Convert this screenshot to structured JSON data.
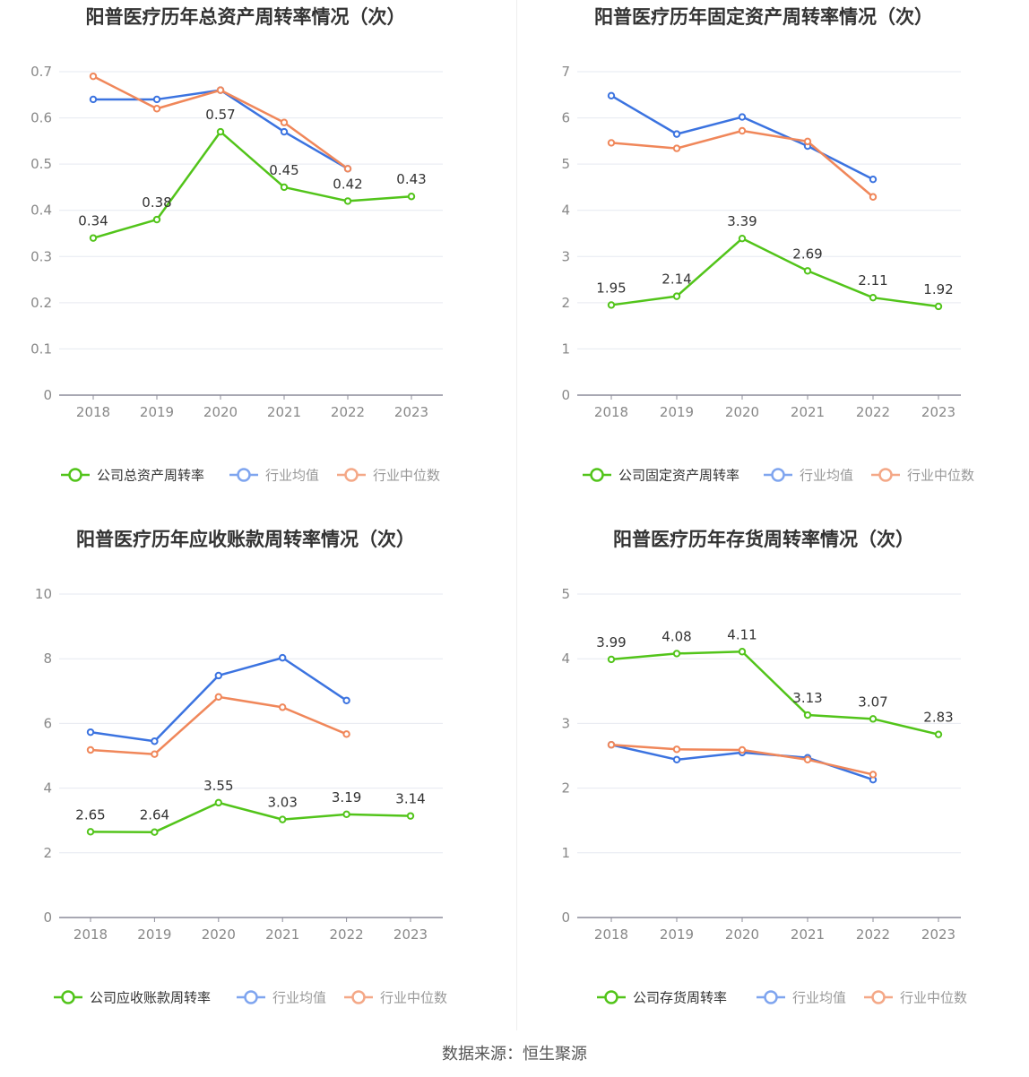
{
  "source_text": "数据来源：恒生聚源",
  "colors": {
    "company": "#52c41a",
    "avg": "#3b73e0",
    "median": "#f0875a",
    "avg_legend": "#7fa5ef",
    "median_legend": "#f4a887"
  },
  "chart_data": [
    {
      "type": "line",
      "title": "阳普医疗历年总资产周转率情况（次）",
      "categories": [
        "2018",
        "2019",
        "2020",
        "2021",
        "2022",
        "2023"
      ],
      "yticks": [
        "0",
        "0.1",
        "0.2",
        "0.3",
        "0.4",
        "0.5",
        "0.6",
        "0.7"
      ],
      "ylim": [
        0,
        0.7
      ],
      "legend_position": "bottom",
      "series": [
        {
          "name": "公司总资产周转率",
          "key": "company",
          "values": [
            0.34,
            0.38,
            0.57,
            0.45,
            0.42,
            0.43
          ],
          "labels": [
            "0.34",
            "0.38",
            "0.57",
            "0.45",
            "0.42",
            "0.43"
          ]
        },
        {
          "name": "行业均值",
          "key": "avg",
          "values": [
            0.64,
            0.64,
            0.66,
            0.57,
            0.49,
            null
          ]
        },
        {
          "name": "行业中位数",
          "key": "median",
          "values": [
            0.69,
            0.62,
            0.66,
            0.59,
            0.49,
            null
          ]
        }
      ]
    },
    {
      "type": "line",
      "title": "阳普医疗历年固定资产周转率情况（次）",
      "categories": [
        "2018",
        "2019",
        "2020",
        "2021",
        "2022",
        "2023"
      ],
      "yticks": [
        "0",
        "1",
        "2",
        "3",
        "4",
        "5",
        "6",
        "7"
      ],
      "ylim": [
        0,
        7
      ],
      "legend_position": "bottom",
      "series": [
        {
          "name": "公司固定资产周转率",
          "key": "company",
          "values": [
            1.95,
            2.14,
            3.39,
            2.69,
            2.11,
            1.92
          ],
          "labels": [
            "1.95",
            "2.14",
            "3.39",
            "2.69",
            "2.11",
            "1.92"
          ]
        },
        {
          "name": "行业均值",
          "key": "avg",
          "values": [
            6.48,
            5.65,
            6.02,
            5.39,
            4.67,
            null
          ]
        },
        {
          "name": "行业中位数",
          "key": "median",
          "values": [
            5.46,
            5.34,
            5.72,
            5.49,
            4.29,
            null
          ]
        }
      ]
    },
    {
      "type": "line",
      "title": "阳普医疗历年应收账款周转率情况（次）",
      "categories": [
        "2018",
        "2019",
        "2020",
        "2021",
        "2022",
        "2023"
      ],
      "yticks": [
        "0",
        "2",
        "4",
        "6",
        "8",
        "10"
      ],
      "ylim": [
        0,
        10
      ],
      "legend_position": "bottom",
      "series": [
        {
          "name": "公司应收账款周转率",
          "key": "company",
          "values": [
            2.65,
            2.64,
            3.55,
            3.03,
            3.19,
            3.14
          ],
          "labels": [
            "2.65",
            "2.64",
            "3.55",
            "3.03",
            "3.19",
            "3.14"
          ]
        },
        {
          "name": "行业均值",
          "key": "avg",
          "values": [
            5.73,
            5.45,
            7.48,
            8.03,
            6.71,
            null
          ]
        },
        {
          "name": "行业中位数",
          "key": "median",
          "values": [
            5.18,
            5.05,
            6.82,
            6.5,
            5.67,
            null
          ]
        }
      ]
    },
    {
      "type": "line",
      "title": "阳普医疗历年存货周转率情况（次）",
      "categories": [
        "2018",
        "2019",
        "2020",
        "2021",
        "2022",
        "2023"
      ],
      "yticks": [
        "0",
        "1",
        "2",
        "3",
        "4",
        "5"
      ],
      "ylim": [
        0,
        5
      ],
      "legend_position": "bottom",
      "series": [
        {
          "name": "公司存货周转率",
          "key": "company",
          "values": [
            3.99,
            4.08,
            4.11,
            3.13,
            3.07,
            2.83
          ],
          "labels": [
            "3.99",
            "4.08",
            "4.11",
            "3.13",
            "3.07",
            "2.83"
          ]
        },
        {
          "name": "行业均值",
          "key": "avg",
          "values": [
            2.67,
            2.44,
            2.55,
            2.47,
            2.13,
            null
          ]
        },
        {
          "name": "行业中位数",
          "key": "median",
          "values": [
            2.67,
            2.6,
            2.59,
            2.44,
            2.21,
            null
          ]
        }
      ]
    }
  ]
}
